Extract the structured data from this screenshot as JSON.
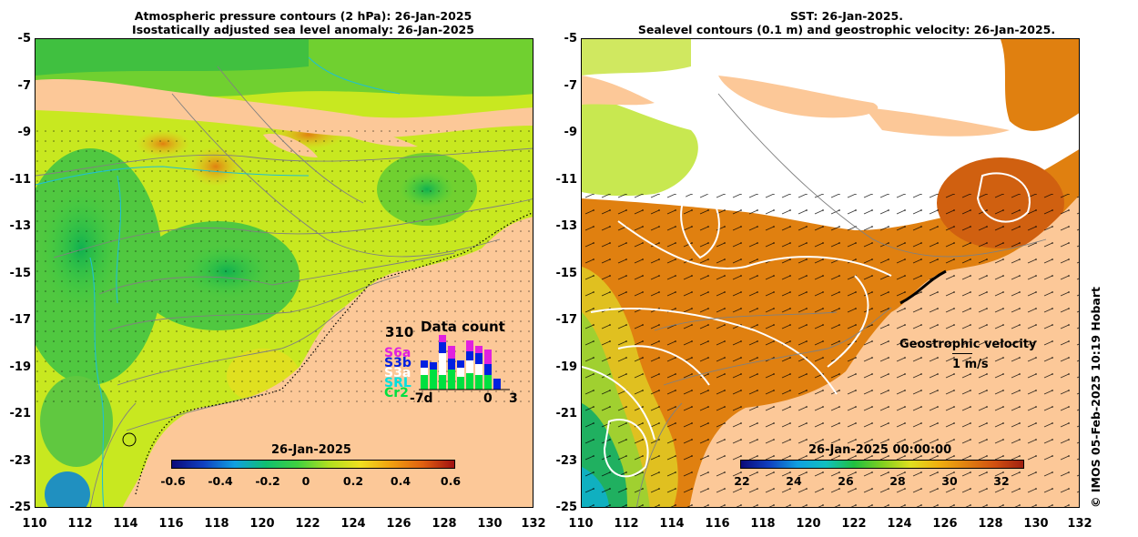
{
  "left": {
    "title_line1": "Atmospheric pressure contours (2 hPa): 26-Jan-2025",
    "title_line2": "Isostatically adjusted sea level anomaly: 26-Jan-2025",
    "colorbar": {
      "date": "26-Jan-2025",
      "ticks": [
        "-0.6",
        "-0.4",
        "-0.2",
        "0",
        "0.2",
        "0.4",
        "0.6"
      ],
      "colors": [
        "#0a0a7a",
        "#1040c0",
        "#10a0e0",
        "#10c070",
        "#40d040",
        "#b0e020",
        "#f0e020",
        "#f0a010",
        "#e06010",
        "#a01010"
      ]
    },
    "data_count": {
      "title": "Data count",
      "max": "310",
      "missions": [
        "S6a",
        "S3b",
        "S3a",
        "SRL",
        "Cr2"
      ],
      "mission_colors": [
        "#e020e0",
        "#0020e0",
        "#ffffff",
        "#00e0e0",
        "#00e040"
      ],
      "x_labels": [
        "-7d",
        "0",
        "3"
      ]
    }
  },
  "right": {
    "title_line1": "SST: 26-Jan-2025.",
    "title_line2": "Sealevel contours (0.1 m) and geostrophic velocity: 26-Jan-2025.",
    "colorbar": {
      "date": "26-Jan-2025 00:00:00",
      "ticks": [
        "22",
        "24",
        "26",
        "28",
        "30",
        "32"
      ],
      "colors": [
        "#0a0a7a",
        "#1040c0",
        "#10a0e0",
        "#10c0c0",
        "#20c040",
        "#80d020",
        "#e0e020",
        "#f0b010",
        "#e08010",
        "#d05010",
        "#a02010"
      ]
    },
    "velocity_legend": {
      "label": "Geostrophic velocity",
      "scale": "1 m/s"
    }
  },
  "axes": {
    "y_ticks": [
      "-5",
      "-7",
      "-9",
      "-11",
      "-13",
      "-15",
      "-17",
      "-19",
      "-21",
      "-23",
      "-25"
    ],
    "x_ticks": [
      "110",
      "112",
      "114",
      "116",
      "118",
      "120",
      "122",
      "124",
      "126",
      "128",
      "130",
      "132"
    ]
  },
  "credit": "© IMOS 05-Feb-2025 10:19 Hobart"
}
